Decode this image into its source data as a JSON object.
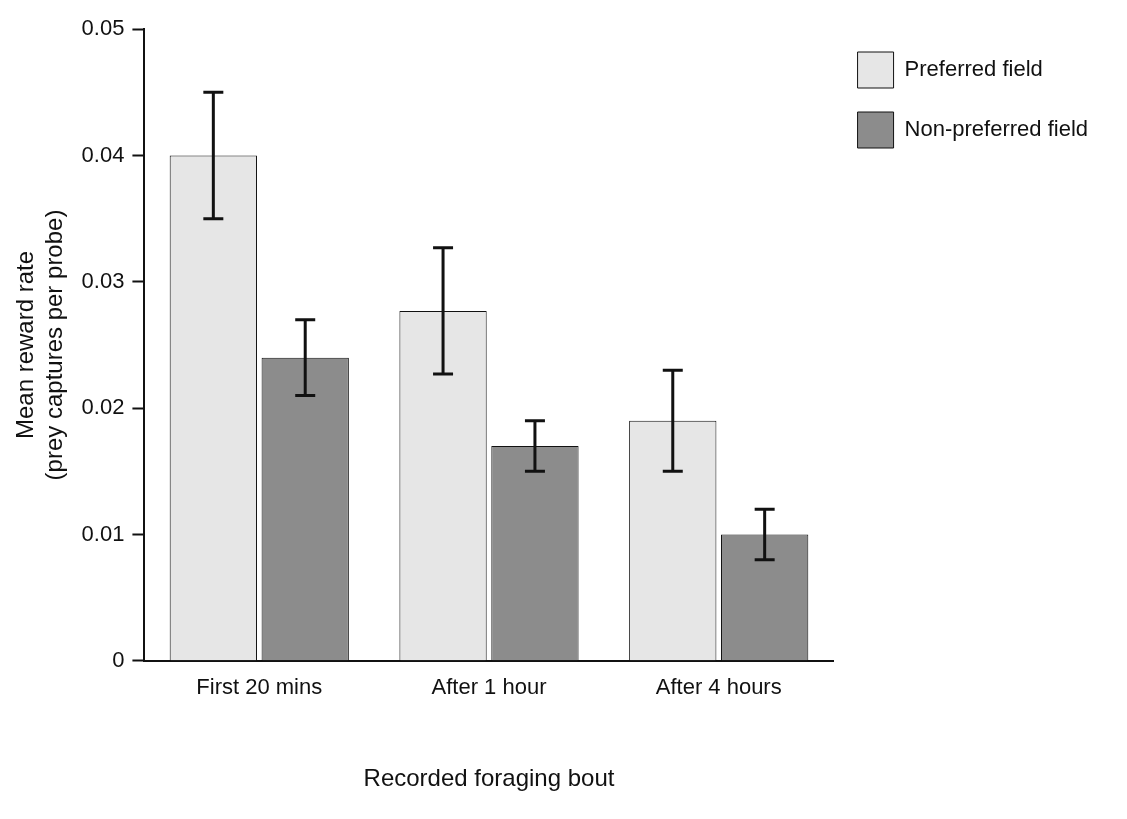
{
  "chart_data": {
    "type": "bar",
    "xlabel": "Recorded foraging bout",
    "ylabel": "Mean reward rate\n(prey captures per probe)",
    "categories": [
      "First 20 mins",
      "After 1 hour",
      "After 4 hours"
    ],
    "series": [
      {
        "name": "Preferred field",
        "color": "#e6e6e6",
        "values": [
          0.04,
          0.0277,
          0.019
        ],
        "errors": [
          0.005,
          0.005,
          0.004
        ]
      },
      {
        "name": "Non-preferred field",
        "color": "#8c8c8c",
        "values": [
          0.024,
          0.017,
          0.01
        ],
        "errors": [
          0.003,
          0.002,
          0.002
        ]
      }
    ],
    "ylim": [
      0,
      0.05
    ],
    "yticks": [
      0,
      0.01,
      0.02,
      0.03,
      0.04,
      0.05
    ],
    "grid": false,
    "legend": "top right"
  }
}
